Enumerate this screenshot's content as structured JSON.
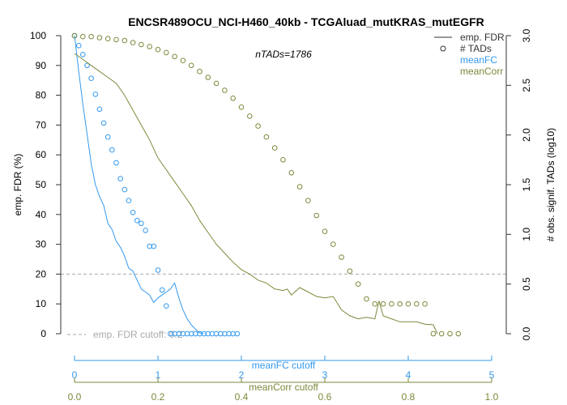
{
  "chart_data": {
    "type": "line",
    "title": "ENCSR489OCU_NCI-H460_40kb - TCGAluad_mutKRAS_mutEGFR",
    "annotation": "nTADs=1786",
    "ylabel_left": "emp. FDR (%)",
    "ylabel_right": "# obs. signif. TADs (log10)",
    "ylim_left": [
      0,
      100
    ],
    "ylim_right": [
      0,
      3.0
    ],
    "left_ticks": [
      "0",
      "10",
      "20",
      "30",
      "40",
      "50",
      "60",
      "70",
      "80",
      "90",
      "100"
    ],
    "right_ticks": [
      "0.0",
      "0.5",
      "1.0",
      "1.5",
      "2.0",
      "2.5",
      "3.0"
    ],
    "fdr_cutoff": {
      "value": 20,
      "label": "emp. FDR cutoff: 0.2"
    },
    "colors": {
      "meanFC": "#3399ee",
      "meanCorr": "#7a8a3a",
      "legend_default": "#333333",
      "cutoff": "#aaaaaa"
    },
    "legend": [
      {
        "label": "emp. FDR",
        "symbol": "line",
        "color": "#333333"
      },
      {
        "label": "# TADs",
        "symbol": "circle",
        "color": "#333333"
      },
      {
        "label": "meanFC",
        "symbol": "none",
        "color": "#3399ee"
      },
      {
        "label": "meanCorr",
        "symbol": "none",
        "color": "#7a8a3a"
      }
    ],
    "x_axes": [
      {
        "name": "meanFC cutoff",
        "color": "#3399ee",
        "range": [
          0,
          5
        ],
        "ticks": [
          "0",
          "1",
          "2",
          "3",
          "4",
          "5"
        ]
      },
      {
        "name": "meanCorr cutoff",
        "color": "#7a8a3a",
        "range": [
          0,
          1
        ],
        "ticks": [
          "0.0",
          "0.2",
          "0.4",
          "0.6",
          "0.8",
          "1.0"
        ]
      }
    ],
    "series": [
      {
        "name": "meanFC",
        "x_axis": "meanFC cutoff",
        "fdr": [
          [
            0,
            100
          ],
          [
            0.05,
            88
          ],
          [
            0.1,
            77
          ],
          [
            0.15,
            67
          ],
          [
            0.2,
            57
          ],
          [
            0.25,
            50
          ],
          [
            0.3,
            46
          ],
          [
            0.35,
            43
          ],
          [
            0.4,
            37
          ],
          [
            0.45,
            35
          ],
          [
            0.5,
            31
          ],
          [
            0.55,
            29
          ],
          [
            0.6,
            26
          ],
          [
            0.65,
            22
          ],
          [
            0.7,
            21
          ],
          [
            0.75,
            18
          ],
          [
            0.8,
            15
          ],
          [
            0.85,
            14
          ],
          [
            0.9,
            13
          ],
          [
            0.95,
            10.5
          ],
          [
            1.0,
            12
          ],
          [
            1.05,
            13
          ],
          [
            1.1,
            14
          ],
          [
            1.15,
            15
          ],
          [
            1.2,
            17
          ],
          [
            1.25,
            12
          ],
          [
            1.3,
            8
          ],
          [
            1.35,
            5
          ],
          [
            1.4,
            3
          ],
          [
            1.45,
            1.5
          ],
          [
            1.5,
            0.3
          ],
          [
            1.55,
            0
          ]
        ],
        "log10_tads": [
          [
            0,
            3.0
          ],
          [
            0.05,
            2.9
          ],
          [
            0.1,
            2.81
          ],
          [
            0.15,
            2.7
          ],
          [
            0.2,
            2.57
          ],
          [
            0.25,
            2.41
          ],
          [
            0.3,
            2.26
          ],
          [
            0.35,
            2.12
          ],
          [
            0.4,
            1.98
          ],
          [
            0.45,
            1.85
          ],
          [
            0.5,
            1.72
          ],
          [
            0.55,
            1.56
          ],
          [
            0.6,
            1.45
          ],
          [
            0.65,
            1.34
          ],
          [
            0.7,
            1.22
          ],
          [
            0.75,
            1.14
          ],
          [
            0.8,
            1.11
          ],
          [
            0.85,
            1.04
          ],
          [
            0.9,
            0.88
          ],
          [
            0.95,
            0.88
          ],
          [
            1.0,
            0.64
          ],
          [
            1.05,
            0.44
          ],
          [
            1.1,
            0.28
          ],
          [
            1.15,
            0
          ],
          [
            1.2,
            0
          ],
          [
            1.25,
            0
          ],
          [
            1.3,
            0
          ],
          [
            1.35,
            0
          ],
          [
            1.4,
            0
          ],
          [
            1.45,
            0
          ],
          [
            1.5,
            0
          ],
          [
            1.55,
            0
          ],
          [
            1.6,
            0
          ],
          [
            1.65,
            0
          ],
          [
            1.7,
            0
          ],
          [
            1.75,
            0
          ],
          [
            1.8,
            0
          ],
          [
            1.85,
            0
          ],
          [
            1.9,
            0
          ],
          [
            1.95,
            0
          ]
        ]
      },
      {
        "name": "meanCorr",
        "x_axis": "meanCorr cutoff",
        "fdr": [
          [
            0,
            94
          ],
          [
            0.02,
            92
          ],
          [
            0.04,
            90
          ],
          [
            0.06,
            88
          ],
          [
            0.08,
            86
          ],
          [
            0.1,
            84
          ],
          [
            0.12,
            80
          ],
          [
            0.14,
            75
          ],
          [
            0.16,
            70
          ],
          [
            0.18,
            65
          ],
          [
            0.2,
            59
          ],
          [
            0.22,
            55
          ],
          [
            0.24,
            51
          ],
          [
            0.26,
            47
          ],
          [
            0.28,
            43
          ],
          [
            0.3,
            38
          ],
          [
            0.32,
            34
          ],
          [
            0.34,
            30
          ],
          [
            0.36,
            27
          ],
          [
            0.38,
            24
          ],
          [
            0.4,
            21.5
          ],
          [
            0.42,
            20
          ],
          [
            0.44,
            18
          ],
          [
            0.46,
            17
          ],
          [
            0.48,
            15
          ],
          [
            0.5,
            14.5
          ],
          [
            0.51,
            15
          ],
          [
            0.52,
            13
          ],
          [
            0.54,
            15.5
          ],
          [
            0.56,
            14
          ],
          [
            0.58,
            12.5
          ],
          [
            0.6,
            12
          ],
          [
            0.62,
            12.5
          ],
          [
            0.64,
            8
          ],
          [
            0.66,
            6
          ],
          [
            0.68,
            5
          ],
          [
            0.7,
            5.5
          ],
          [
            0.72,
            5
          ],
          [
            0.73,
            11
          ],
          [
            0.74,
            6
          ],
          [
            0.76,
            5
          ],
          [
            0.78,
            4
          ],
          [
            0.8,
            4
          ],
          [
            0.82,
            4
          ],
          [
            0.84,
            3.2
          ],
          [
            0.86,
            3
          ],
          [
            0.87,
            0
          ]
        ],
        "log10_tads": [
          [
            0,
            3.0
          ],
          [
            0.02,
            2.99
          ],
          [
            0.04,
            2.99
          ],
          [
            0.06,
            2.98
          ],
          [
            0.08,
            2.97
          ],
          [
            0.1,
            2.96
          ],
          [
            0.12,
            2.95
          ],
          [
            0.14,
            2.93
          ],
          [
            0.16,
            2.91
          ],
          [
            0.18,
            2.89
          ],
          [
            0.2,
            2.86
          ],
          [
            0.22,
            2.83
          ],
          [
            0.24,
            2.79
          ],
          [
            0.26,
            2.75
          ],
          [
            0.28,
            2.7
          ],
          [
            0.3,
            2.64
          ],
          [
            0.32,
            2.58
          ],
          [
            0.34,
            2.52
          ],
          [
            0.36,
            2.45
          ],
          [
            0.38,
            2.37
          ],
          [
            0.4,
            2.28
          ],
          [
            0.42,
            2.19
          ],
          [
            0.44,
            2.09
          ],
          [
            0.46,
            1.98
          ],
          [
            0.48,
            1.87
          ],
          [
            0.5,
            1.75
          ],
          [
            0.52,
            1.62
          ],
          [
            0.54,
            1.48
          ],
          [
            0.56,
            1.34
          ],
          [
            0.58,
            1.19
          ],
          [
            0.6,
            1.03
          ],
          [
            0.62,
            0.9
          ],
          [
            0.64,
            0.77
          ],
          [
            0.66,
            0.63
          ],
          [
            0.68,
            0.5
          ],
          [
            0.7,
            0.35
          ],
          [
            0.72,
            0.3
          ],
          [
            0.74,
            0.3
          ],
          [
            0.76,
            0.3
          ],
          [
            0.78,
            0.3
          ],
          [
            0.8,
            0.3
          ],
          [
            0.82,
            0.3
          ],
          [
            0.84,
            0.3
          ],
          [
            0.86,
            0
          ],
          [
            0.88,
            0
          ],
          [
            0.9,
            0
          ],
          [
            0.92,
            0
          ]
        ]
      }
    ]
  }
}
